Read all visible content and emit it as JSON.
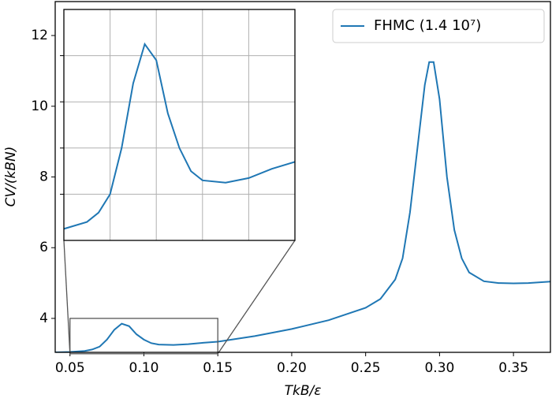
{
  "chart_data": {
    "type": "line",
    "xlabel": "TkB/ε",
    "ylabel": "CV/(kBN)",
    "x": [
      0.04,
      0.05,
      0.06,
      0.065,
      0.07,
      0.075,
      0.08,
      0.085,
      0.09,
      0.095,
      0.1,
      0.105,
      0.11,
      0.12,
      0.13,
      0.14,
      0.15,
      0.175,
      0.2,
      0.225,
      0.25,
      0.26,
      0.27,
      0.275,
      0.28,
      0.285,
      0.29,
      0.293,
      0.296,
      0.3,
      0.305,
      0.31,
      0.315,
      0.32,
      0.33,
      0.34,
      0.35,
      0.36,
      0.375
    ],
    "series": [
      {
        "name": "FHMC (1.4 10⁷)",
        "color": "#1f77b4",
        "values": [
          3.04,
          3.05,
          3.08,
          3.12,
          3.2,
          3.4,
          3.68,
          3.85,
          3.78,
          3.55,
          3.4,
          3.3,
          3.26,
          3.25,
          3.27,
          3.31,
          3.34,
          3.5,
          3.7,
          3.95,
          4.3,
          4.55,
          5.1,
          5.7,
          7.0,
          8.8,
          10.6,
          11.25,
          11.25,
          10.2,
          8.0,
          6.5,
          5.7,
          5.3,
          5.05,
          5.0,
          4.99,
          5.0,
          5.04
        ]
      }
    ],
    "xlim": [
      0.04,
      0.375
    ],
    "ylim": [
      3.04,
      12.96
    ],
    "xticks": [
      0.05,
      {
        "value": 0.1,
        "label": "0.10"
      },
      0.15,
      {
        "value": 0.2,
        "label": "0.20"
      },
      0.25,
      {
        "value": 0.3,
        "label": "0.30"
      },
      0.35
    ],
    "yticks": [
      4,
      6,
      8,
      10,
      12
    ],
    "legend": "upper right",
    "inset": {
      "xlim": [
        0.05,
        0.15
      ],
      "ylim": [
        3.0,
        4.0
      ],
      "xticks": [
        0.07,
        0.09,
        0.11,
        0.13
      ],
      "yticks": [
        3.2,
        3.4,
        3.6,
        3.8
      ],
      "grid": true
    }
  }
}
